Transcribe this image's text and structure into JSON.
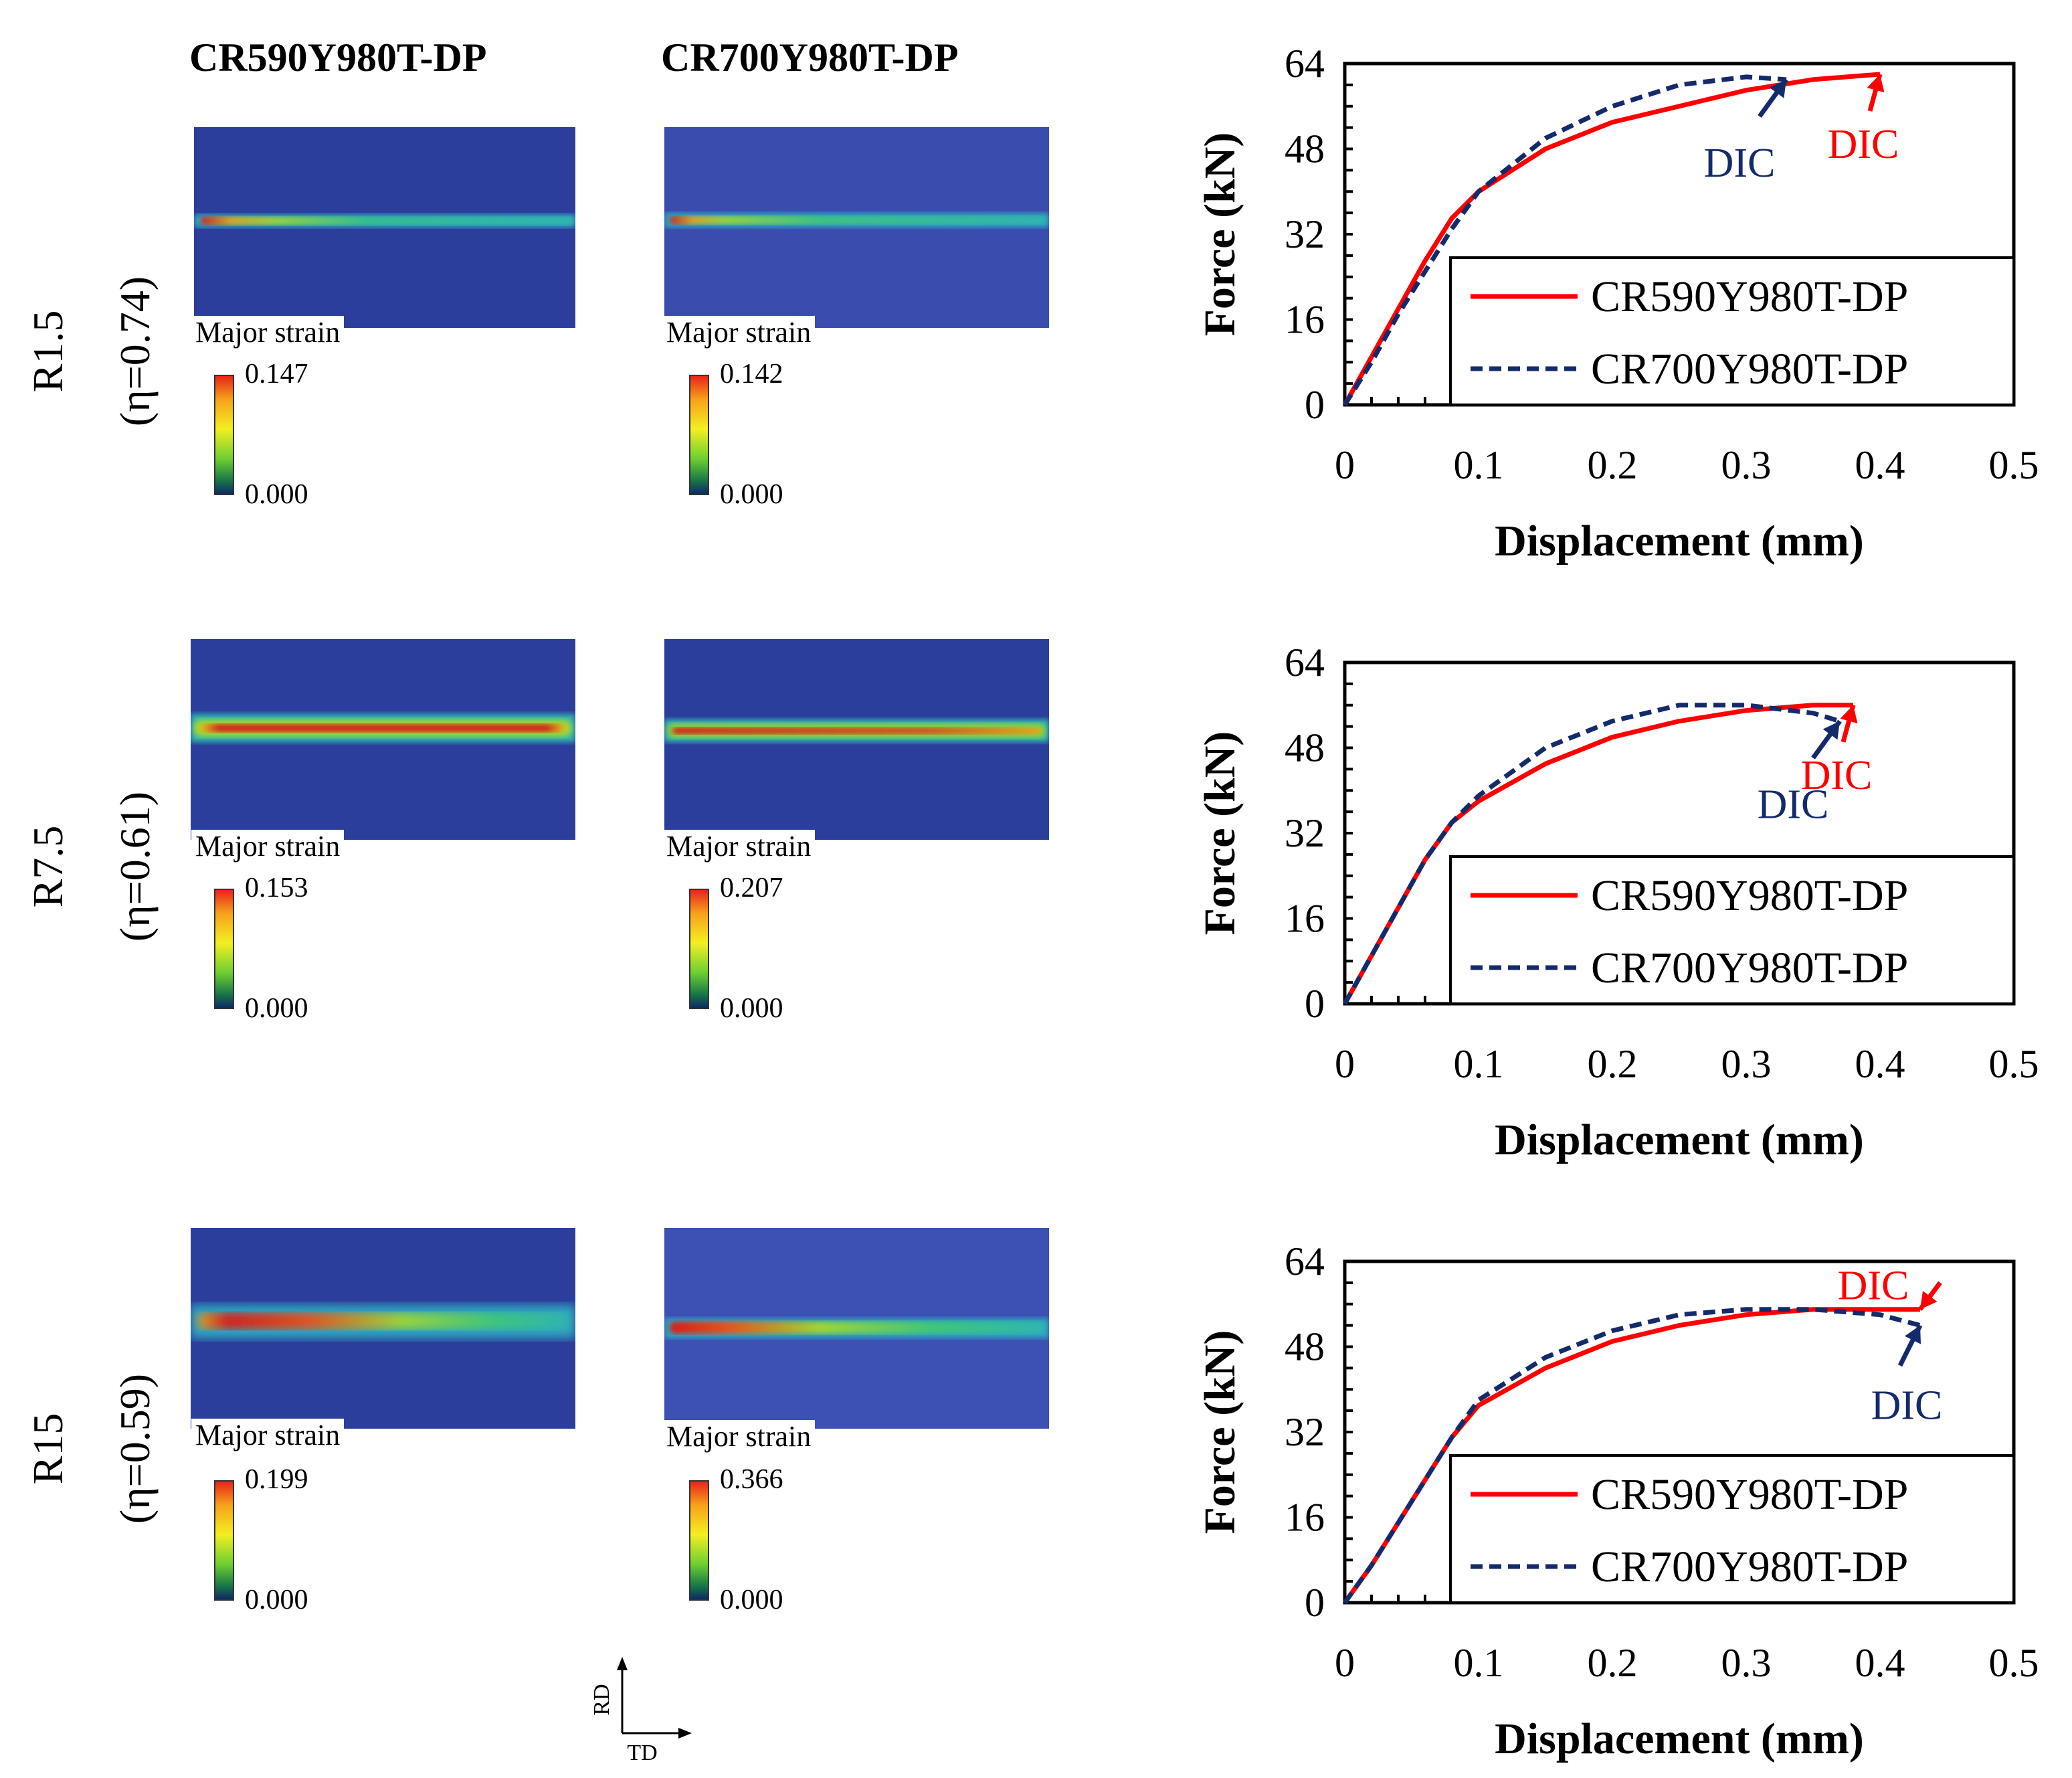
{
  "headers": {
    "col1": "CR590Y980T-DP",
    "col2": "CR700Y980T-DP"
  },
  "rows": [
    {
      "specimen": "R1.5",
      "triaxiality": "(η=0.74)",
      "dic": [
        {
          "label": "Major strain",
          "max": "0.147",
          "min": "0.000"
        },
        {
          "label": "Major strain",
          "max": "0.142",
          "min": "0.000"
        }
      ]
    },
    {
      "specimen": "R7.5",
      "triaxiality": "(η=0.61)",
      "dic": [
        {
          "label": "Major strain",
          "max": "0.153",
          "min": "0.000"
        },
        {
          "label": "Major strain",
          "max": "0.207",
          "min": "0.000"
        }
      ]
    },
    {
      "specimen": "R15",
      "triaxiality": "(η=0.59)",
      "dic": [
        {
          "label": "Major strain",
          "max": "0.199",
          "min": "0.000"
        },
        {
          "label": "Major strain",
          "max": "0.366",
          "min": "0.000"
        }
      ]
    }
  ],
  "axes_indicator": {
    "rd": "RD",
    "td": "TD"
  },
  "colors": {
    "cr590": "#ff0000",
    "cr700": "#142b6b"
  },
  "chart_data": [
    {
      "type": "line",
      "title": "R1.5",
      "xlabel": "Displacement (mm)",
      "ylabel": "Force (kN)",
      "xlim": [
        0,
        0.5
      ],
      "ylim": [
        0,
        64
      ],
      "xticks": [
        "0",
        "0.1",
        "0.2",
        "0.3",
        "0.4",
        "0.5"
      ],
      "yticks": [
        "0",
        "16",
        "32",
        "48",
        "64"
      ],
      "legend": "bottom-right",
      "series": [
        {
          "name": "CR590Y980T-DP",
          "style": "solid",
          "x": [
            0,
            0.02,
            0.04,
            0.06,
            0.08,
            0.1,
            0.15,
            0.2,
            0.25,
            0.3,
            0.35,
            0.4
          ],
          "y": [
            0,
            9,
            18,
            27,
            35,
            40,
            48,
            53,
            56,
            59,
            61,
            62
          ]
        },
        {
          "name": "CR700Y980T-DP",
          "style": "dashed",
          "x": [
            0,
            0.02,
            0.04,
            0.06,
            0.08,
            0.1,
            0.15,
            0.2,
            0.25,
            0.3,
            0.33
          ],
          "y": [
            0,
            8,
            17,
            25,
            33,
            40,
            50,
            56,
            60,
            61.5,
            61
          ]
        }
      ],
      "annotations": [
        {
          "text": "DIC",
          "series": "CR700Y980T-DP",
          "x": 0.33,
          "y": 61
        },
        {
          "text": "DIC",
          "series": "CR590Y980T-DP",
          "x": 0.4,
          "y": 62
        }
      ]
    },
    {
      "type": "line",
      "title": "R7.5",
      "xlabel": "Displacement (mm)",
      "ylabel": "Force (kN)",
      "xlim": [
        0,
        0.5
      ],
      "ylim": [
        0,
        64
      ],
      "xticks": [
        "0",
        "0.1",
        "0.2",
        "0.3",
        "0.4",
        "0.5"
      ],
      "yticks": [
        "0",
        "16",
        "32",
        "48",
        "64"
      ],
      "legend": "bottom-right",
      "series": [
        {
          "name": "CR590Y980T-DP",
          "style": "solid",
          "x": [
            0,
            0.02,
            0.04,
            0.06,
            0.08,
            0.1,
            0.15,
            0.2,
            0.25,
            0.3,
            0.35,
            0.38
          ],
          "y": [
            0,
            9,
            18,
            27,
            34,
            38,
            45,
            50,
            53,
            55,
            56,
            56
          ]
        },
        {
          "name": "CR700Y980T-DP",
          "style": "dashed",
          "x": [
            0,
            0.02,
            0.04,
            0.06,
            0.08,
            0.1,
            0.15,
            0.2,
            0.25,
            0.3,
            0.35,
            0.37
          ],
          "y": [
            0,
            9,
            18,
            27,
            34,
            39,
            48,
            53,
            56,
            56,
            54.5,
            53
          ]
        }
      ],
      "annotations": [
        {
          "text": "DIC",
          "series": "CR700Y980T-DP",
          "x": 0.37,
          "y": 53
        },
        {
          "text": "DIC",
          "series": "CR590Y980T-DP",
          "x": 0.38,
          "y": 56
        }
      ]
    },
    {
      "type": "line",
      "title": "R15",
      "xlabel": "Displacement (mm)",
      "ylabel": "Force (kN)",
      "xlim": [
        0,
        0.5
      ],
      "ylim": [
        0,
        64
      ],
      "xticks": [
        "0",
        "0.1",
        "0.2",
        "0.3",
        "0.4",
        "0.5"
      ],
      "yticks": [
        "0",
        "16",
        "32",
        "48",
        "64"
      ],
      "legend": "bottom-right",
      "series": [
        {
          "name": "CR590Y980T-DP",
          "style": "solid",
          "x": [
            0,
            0.02,
            0.04,
            0.06,
            0.08,
            0.1,
            0.15,
            0.2,
            0.25,
            0.3,
            0.35,
            0.4,
            0.43
          ],
          "y": [
            0,
            7,
            15,
            23,
            31,
            37,
            44,
            49,
            52,
            54,
            55,
            55,
            55
          ]
        },
        {
          "name": "CR700Y980T-DP",
          "style": "dashed",
          "x": [
            0,
            0.02,
            0.04,
            0.06,
            0.08,
            0.1,
            0.15,
            0.2,
            0.25,
            0.3,
            0.35,
            0.4,
            0.43
          ],
          "y": [
            0,
            7,
            15,
            23,
            31,
            38,
            46,
            51,
            54,
            55,
            55,
            54,
            52
          ]
        }
      ],
      "annotations": [
        {
          "text": "DIC",
          "series": "CR590Y980T-DP",
          "x": 0.43,
          "y": 55
        },
        {
          "text": "DIC",
          "series": "CR700Y980T-DP",
          "x": 0.43,
          "y": 52
        }
      ]
    }
  ]
}
